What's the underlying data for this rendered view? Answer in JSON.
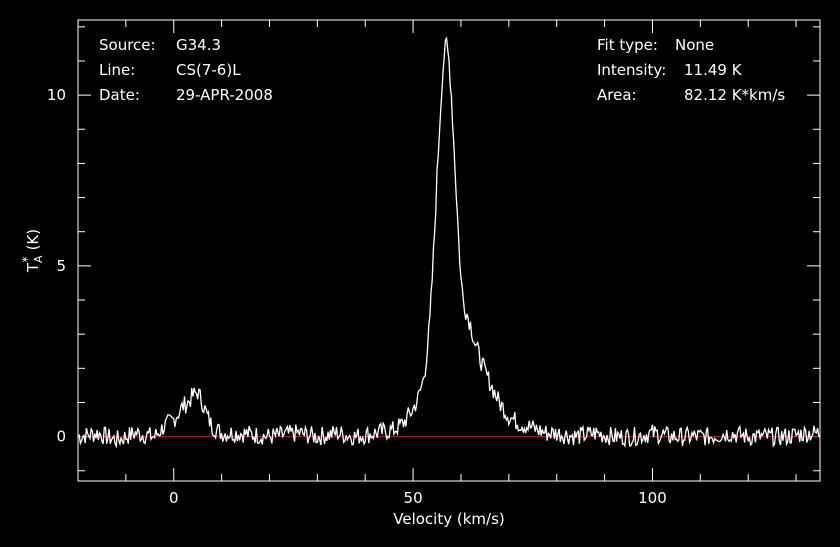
{
  "info": {
    "source_label": "Source:",
    "source_value": "G34.3",
    "line_label": "Line:",
    "line_value": "CS(7-6)L",
    "date_label": "Date:",
    "date_value": "29-APR-2008",
    "fit_label": "Fit type:",
    "fit_value": "None",
    "intensity_label": "Intensity:",
    "intensity_value": "11.49 K",
    "area_label": "Area:",
    "area_value": "82.12 K*km/s"
  },
  "colors": {
    "background": "#000000",
    "axes": "#ffffff",
    "spectrum": "#ffffff",
    "baseline": "#ff0000"
  },
  "chart_data": {
    "type": "line",
    "xlabel": "Velocity (km/s)",
    "ylabel": "T",
    "ylabel_sub": "A",
    "ylabel_sup": "*",
    "ylabel_unit": "(K)",
    "xlim": [
      -20,
      135
    ],
    "ylim": [
      -1.3,
      12.2
    ],
    "xticks": [
      0,
      50,
      100
    ],
    "xtick_labels": [
      "0",
      "50",
      "100"
    ],
    "yticks": [
      0,
      5,
      10
    ],
    "ytick_labels": [
      "0",
      "5",
      "10"
    ],
    "grid": false,
    "baseline_y": 0,
    "series": [
      {
        "x": [
          -20,
          -16,
          -12,
          -8,
          -4,
          -2,
          0,
          1,
          2,
          3,
          4,
          5,
          6,
          7,
          8,
          10,
          14,
          20,
          26,
          30,
          34,
          38,
          42,
          46,
          48,
          49,
          50,
          51,
          52,
          52.5,
          53,
          53.5,
          54,
          54.5,
          55,
          55.5,
          56,
          56.5,
          57,
          57.5,
          58,
          58.5,
          59,
          59.5,
          60,
          60.5,
          61,
          61.5,
          62,
          62.5,
          63,
          64,
          65,
          66,
          67,
          68,
          69,
          70,
          72,
          74,
          76,
          78,
          80,
          84,
          88,
          92,
          96,
          100,
          104,
          108,
          112,
          116,
          120,
          124,
          128,
          132,
          135
        ],
        "y": [
          0.0,
          0.1,
          -0.1,
          0.1,
          0.0,
          0.3,
          0.5,
          0.7,
          0.9,
          1.0,
          1.2,
          1.3,
          1.0,
          0.6,
          0.3,
          0.1,
          0.1,
          0.0,
          0.1,
          0.0,
          0.1,
          0.0,
          0.1,
          0.2,
          0.4,
          0.6,
          0.8,
          1.1,
          1.6,
          2.0,
          2.6,
          3.4,
          4.6,
          6.0,
          7.6,
          9.0,
          10.3,
          11.2,
          11.49,
          11.0,
          10.0,
          8.6,
          7.2,
          5.8,
          4.6,
          4.0,
          3.7,
          3.5,
          3.3,
          3.0,
          2.7,
          2.3,
          1.9,
          1.6,
          1.3,
          1.0,
          0.8,
          0.6,
          0.4,
          0.3,
          0.2,
          0.1,
          0.1,
          0.0,
          0.1,
          0.0,
          0.0,
          0.1,
          0.0,
          0.0,
          0.0,
          0.1,
          0.0,
          0.0,
          0.0,
          0.1,
          0.1
        ]
      }
    ]
  }
}
